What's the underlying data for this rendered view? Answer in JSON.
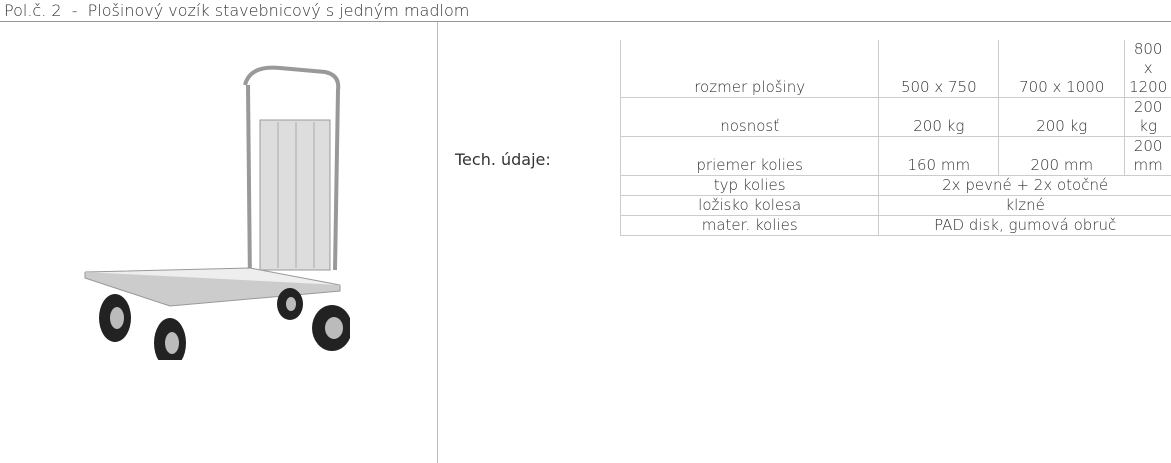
{
  "header": {
    "title": "Pol.č. 2  -  Plošinový vozík stavebnicový s jedným madlom"
  },
  "table": {
    "label": "Tech. údaje:",
    "rows": [
      [
        "rozmer plošiny",
        "500 x 750",
        "700 x 1000",
        "800 x 1200"
      ],
      [
        "nosnosť",
        "200 kg",
        "200 kg",
        "200 kg"
      ],
      [
        "priemer kolies",
        "160 mm",
        "200 mm",
        "200 mm"
      ],
      [
        "typ kolies",
        "2x pevné + 2x otočné"
      ],
      [
        "ložisko kolesa",
        "klzné"
      ],
      [
        "mater. kolies",
        "PAD disk, gumová obruč"
      ]
    ]
  }
}
